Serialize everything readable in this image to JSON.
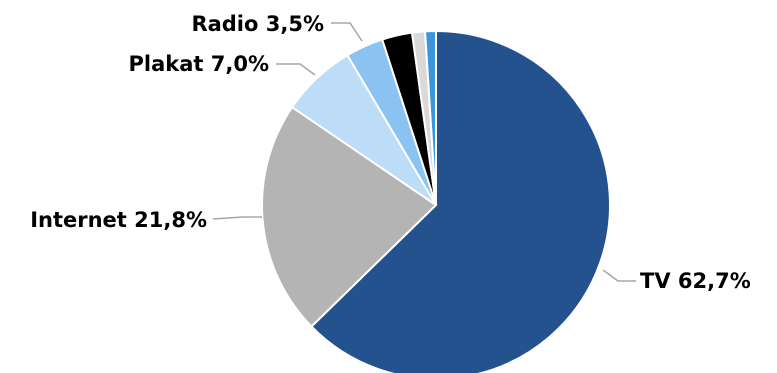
{
  "chart_data": {
    "type": "pie",
    "start_angle_deg": 0,
    "direction": "clockwise",
    "slices": [
      {
        "name": "TV",
        "value": 62.7,
        "label": "TV 62,7%",
        "color": "#24528f"
      },
      {
        "name": "Internet",
        "value": 21.8,
        "label": "Internet 21,8%",
        "color": "#b4b4b4"
      },
      {
        "name": "Plakat",
        "value": 7.0,
        "label": "Plakat 7,0%",
        "color": "#bcdcf8"
      },
      {
        "name": "Radio",
        "value": 3.5,
        "label": "Radio 3,5%",
        "color": "#8ac2f2"
      },
      {
        "name": "",
        "value": 2.8,
        "label": "",
        "color": "#000000"
      },
      {
        "name": "",
        "value": 1.2,
        "label": "",
        "color": "#d9d9d9"
      },
      {
        "name": "",
        "value": 1.0,
        "label": "",
        "color": "#3a96de"
      }
    ]
  }
}
